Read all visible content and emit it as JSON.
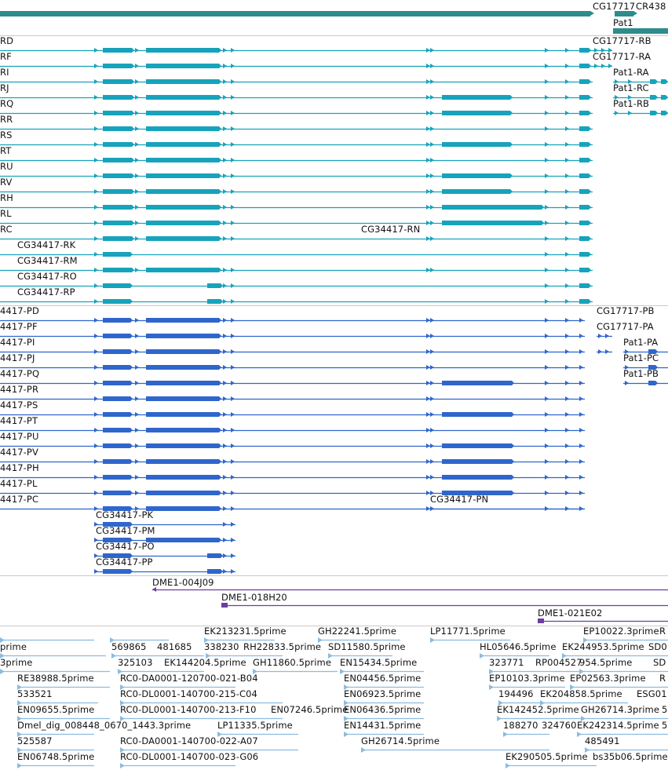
{
  "colors": {
    "gene": "#2e8c8c",
    "cyan": "#17a3bb",
    "blue": "#2f66cc",
    "clone": "#6a3fa0",
    "est": "#8cbcdf",
    "sep": "#c9c9c9"
  },
  "gene_tracks": {
    "top_labels": [
      "CG17717",
      "CR438",
      "Pat1"
    ]
  },
  "tx_cyan": [
    {
      "label": "RD",
      "feat": "CG17717-RB"
    },
    {
      "label": "RF",
      "feat": "CG17717-RA"
    },
    {
      "label": "RI",
      "feat": "Pat1-RA"
    },
    {
      "label": "RJ",
      "feat": "Pat1-RC"
    },
    {
      "label": "RQ",
      "feat": "Pat1-RB"
    },
    {
      "label": "RR"
    },
    {
      "label": "RS"
    },
    {
      "label": "RT"
    },
    {
      "label": "RU"
    },
    {
      "label": "RV"
    },
    {
      "label": "RH"
    },
    {
      "label": "RL"
    },
    {
      "label": "RC"
    },
    {
      "label": "CG34417-RK"
    },
    {
      "label": "CG34417-RM"
    },
    {
      "label": "CG34417-RO"
    },
    {
      "label": "CG34417-RP"
    },
    {
      "label": "CG34417-RN"
    }
  ],
  "tx_blue": [
    {
      "label": "4417-PD",
      "feat": "CG17717-PB"
    },
    {
      "label": "4417-PF",
      "feat": "CG17717-PA"
    },
    {
      "label": "4417-PI",
      "feat": "Pat1-PA"
    },
    {
      "label": "4417-PJ",
      "feat": "Pat1-PC"
    },
    {
      "label": "4417-PQ",
      "feat": "Pat1-PB"
    },
    {
      "label": "4417-PR"
    },
    {
      "label": "4417-PS"
    },
    {
      "label": "4417-PT"
    },
    {
      "label": "4417-PU"
    },
    {
      "label": "4417-PV"
    },
    {
      "label": "4417-PH"
    },
    {
      "label": "4417-PL"
    },
    {
      "label": "4417-PC"
    },
    {
      "label": "CG34417-PN"
    },
    {
      "label": "CG34417-PK"
    },
    {
      "label": "CG34417-PM"
    },
    {
      "label": "CG34417-PO"
    },
    {
      "label": "CG34417-PP"
    }
  ],
  "clones": [
    "DME1-004J09",
    "DME1-018H20",
    "DME1-021E02"
  ],
  "ests": [
    "EK213231.5prime",
    "GH22241.5prime",
    "LP11771.5prime",
    "EP10022.3prime",
    "R",
    "prime",
    "569865",
    "481685",
    "338230",
    "RH22833.5prime",
    "SD11580.5prime",
    "HL05646.5prime",
    "EK244953.5prime",
    "SD0",
    "3prime",
    "325103",
    "EK144204.5prime",
    "GH11860.5prime",
    "EN15434.5prime",
    "323771",
    "RP004527",
    "954.5prime",
    "SD",
    "RE38988.5prime",
    "RC0-DA0001-120700-021-B04",
    "EN04456.5prime",
    "EP10103.3prime",
    "EP02563.3prime",
    "R",
    "533521",
    "RC0-DL0001-140700-215-C04",
    "EN06923.5prime",
    "194496",
    "EK204858.5prime",
    "ESG01",
    "EN09655.5prime",
    "RC0-DL0001-140700-213-F10",
    "EN07246.5prime",
    "EN06436.5prime",
    "EK142452.5prime",
    "GH26714.3prime",
    "5",
    "Dmel_dig_008448_0670_1443.3prime",
    "LP11335.5prime",
    "EN14431.5prime",
    "188270",
    "324760",
    "EK242314.5prime",
    "5",
    "525587",
    "RC0-DA0001-140700-022-A07",
    "GH26714.5prime",
    "485491",
    "EN06748.5prime",
    "RC0-DL0001-140700-023-G06",
    "EK290505.5prime",
    "bs35b06.5prime"
  ]
}
